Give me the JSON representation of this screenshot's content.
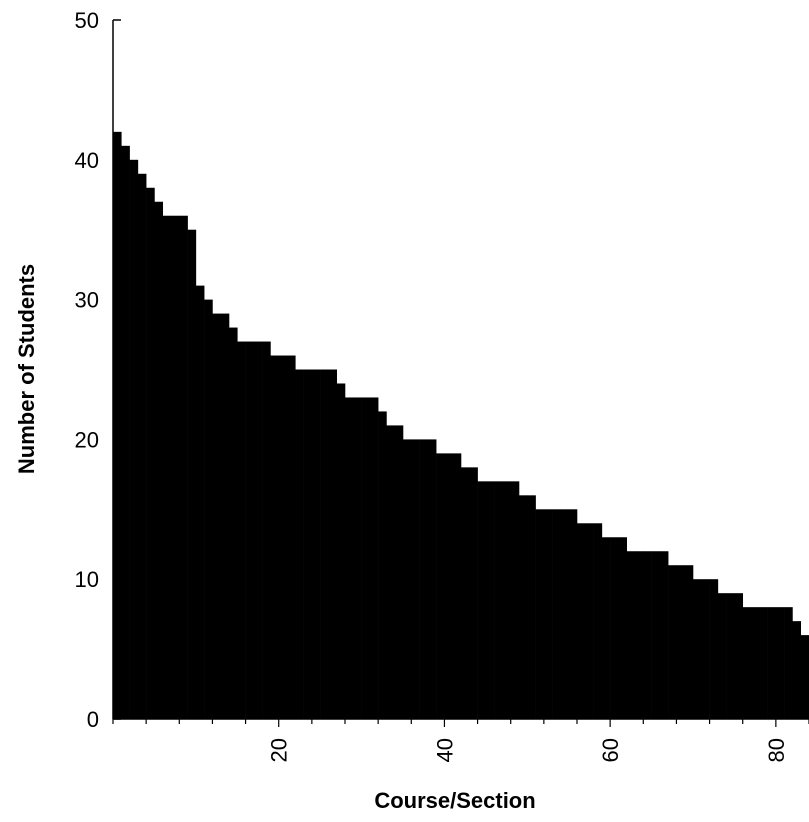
{
  "chart_data": {
    "type": "bar",
    "title": "",
    "xlabel": "Course/Section",
    "ylabel": "Number of Students",
    "xlim": [
      0,
      84
    ],
    "ylim": [
      0,
      50
    ],
    "x_ticks": [
      20,
      40,
      60,
      80
    ],
    "y_ticks": [
      0,
      10,
      20,
      30,
      40,
      50
    ],
    "grid": false,
    "bar_color": "#000000",
    "values": [
      42,
      41,
      40,
      39,
      38,
      37,
      36,
      36,
      36,
      35,
      31,
      30,
      29,
      29,
      28,
      27,
      27,
      27,
      27,
      26,
      26,
      26,
      25,
      25,
      25,
      25,
      25,
      24,
      23,
      23,
      23,
      23,
      22,
      21,
      21,
      20,
      20,
      20,
      20,
      19,
      19,
      19,
      18,
      18,
      17,
      17,
      17,
      17,
      17,
      16,
      16,
      15,
      15,
      15,
      15,
      15,
      14,
      14,
      14,
      13,
      13,
      13,
      12,
      12,
      12,
      12,
      12,
      11,
      11,
      11,
      10,
      10,
      10,
      9,
      9,
      9,
      8,
      8,
      8,
      8,
      8,
      8,
      7,
      6
    ]
  }
}
